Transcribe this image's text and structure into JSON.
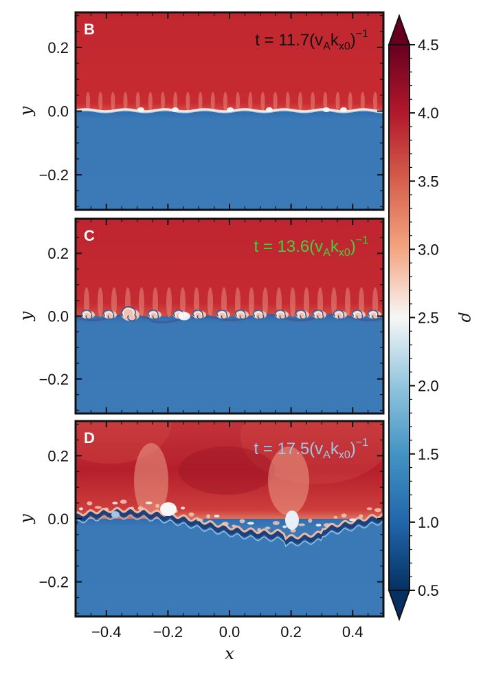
{
  "chart_data": {
    "type": "heatmap",
    "xlabel": "x",
    "ylabel": "y",
    "colorbar_label": "ρ",
    "xlim": [
      -0.5,
      0.5
    ],
    "ylim": [
      -0.31,
      0.31
    ],
    "x_ticks": [
      -0.4,
      -0.2,
      0.0,
      0.2,
      0.4
    ],
    "x_tick_labels": [
      "−0.4",
      "−0.2",
      "0.0",
      "0.2",
      "0.4"
    ],
    "y_ticks": [
      0.2,
      0.0,
      -0.2
    ],
    "y_tick_labels": [
      "0.2",
      "0.0",
      "−0.2"
    ],
    "colorbar": {
      "vmin": 0.5,
      "vmax": 4.5,
      "ticks": [
        4.5,
        4.0,
        3.5,
        3.0,
        2.5,
        2.0,
        1.5,
        1.0,
        0.5
      ],
      "tick_labels": [
        "4.5",
        "4.0",
        "3.5",
        "3.0",
        "2.5",
        "2.0",
        "1.5",
        "1.0",
        "0.5"
      ],
      "extend": "both",
      "colormap": "RdBu_r",
      "colors": [
        "#053061",
        "#2166ac",
        "#4393c3",
        "#92c5de",
        "#f7f7f7",
        "#f4a582",
        "#d6604d",
        "#b2182b",
        "#67001f"
      ]
    },
    "panels": [
      {
        "letter": "B",
        "time_label": {
          "prefix": "t = 11.7(v",
          "sub1": "A",
          "mid": "k",
          "sub2": "x0",
          "close": ")",
          "sup": "−1"
        },
        "label_color": "#111111",
        "upper_density": 4.1,
        "lower_density": 1.0,
        "description": "interface with small ripples"
      },
      {
        "letter": "C",
        "time_label": {
          "prefix": "t = 13.6(v",
          "sub1": "A",
          "mid": "k",
          "sub2": "x0",
          "close": ")",
          "sup": "−1"
        },
        "label_color": "#3fd23f",
        "upper_density": 4.1,
        "lower_density": 1.0,
        "description": "rolled-up Kelvin-Helmholtz vortices"
      },
      {
        "letter": "D",
        "time_label": {
          "prefix": "t = 17.5(v",
          "sub1": "A",
          "mid": "k",
          "sub2": "x0",
          "close": ")",
          "sup": "−1"
        },
        "label_color": "#9ec9e6",
        "upper_density": 4.1,
        "lower_density": 1.0,
        "description": "turbulent mixing layer"
      }
    ]
  }
}
